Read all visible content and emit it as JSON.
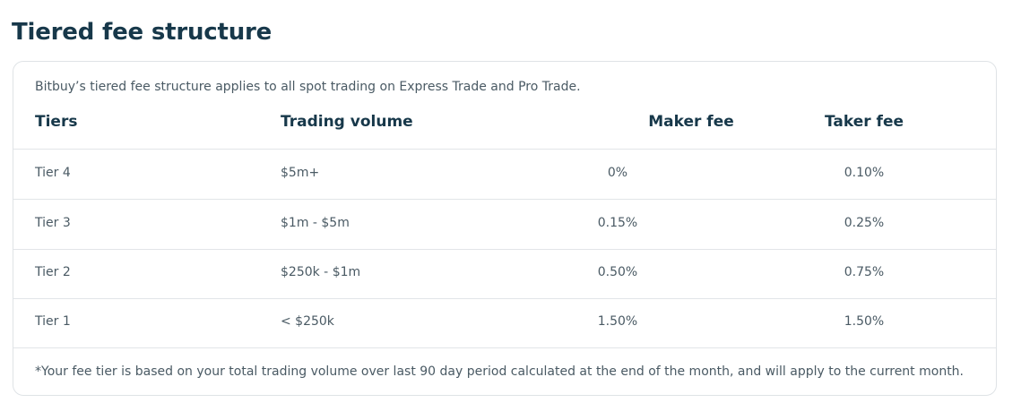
{
  "title": "Tiered fee structure",
  "intro": "Bitbuy’s tiered fee structure applies to all spot trading on Express Trade and Pro Trade.",
  "table": {
    "headers": {
      "tier": "Tiers",
      "volume": "Trading volume",
      "maker": "Maker fee",
      "taker": "Taker fee"
    },
    "rows": [
      {
        "tier": "Tier 4",
        "volume": "$5m+",
        "maker": "0%",
        "taker": "0.10%"
      },
      {
        "tier": "Tier 3",
        "volume": "$1m - $5m",
        "maker": "0.15%",
        "taker": "0.25%"
      },
      {
        "tier": "Tier 2",
        "volume": "$250k - $1m",
        "maker": "0.50%",
        "taker": "0.75%"
      },
      {
        "tier": "Tier 1",
        "volume": "< $250k",
        "maker": "1.50%",
        "taker": "1.50%"
      }
    ]
  },
  "footnote": "*Your fee tier is based on your total trading volume over last 90 day period calculated at the end of the month, and will apply to the current month."
}
